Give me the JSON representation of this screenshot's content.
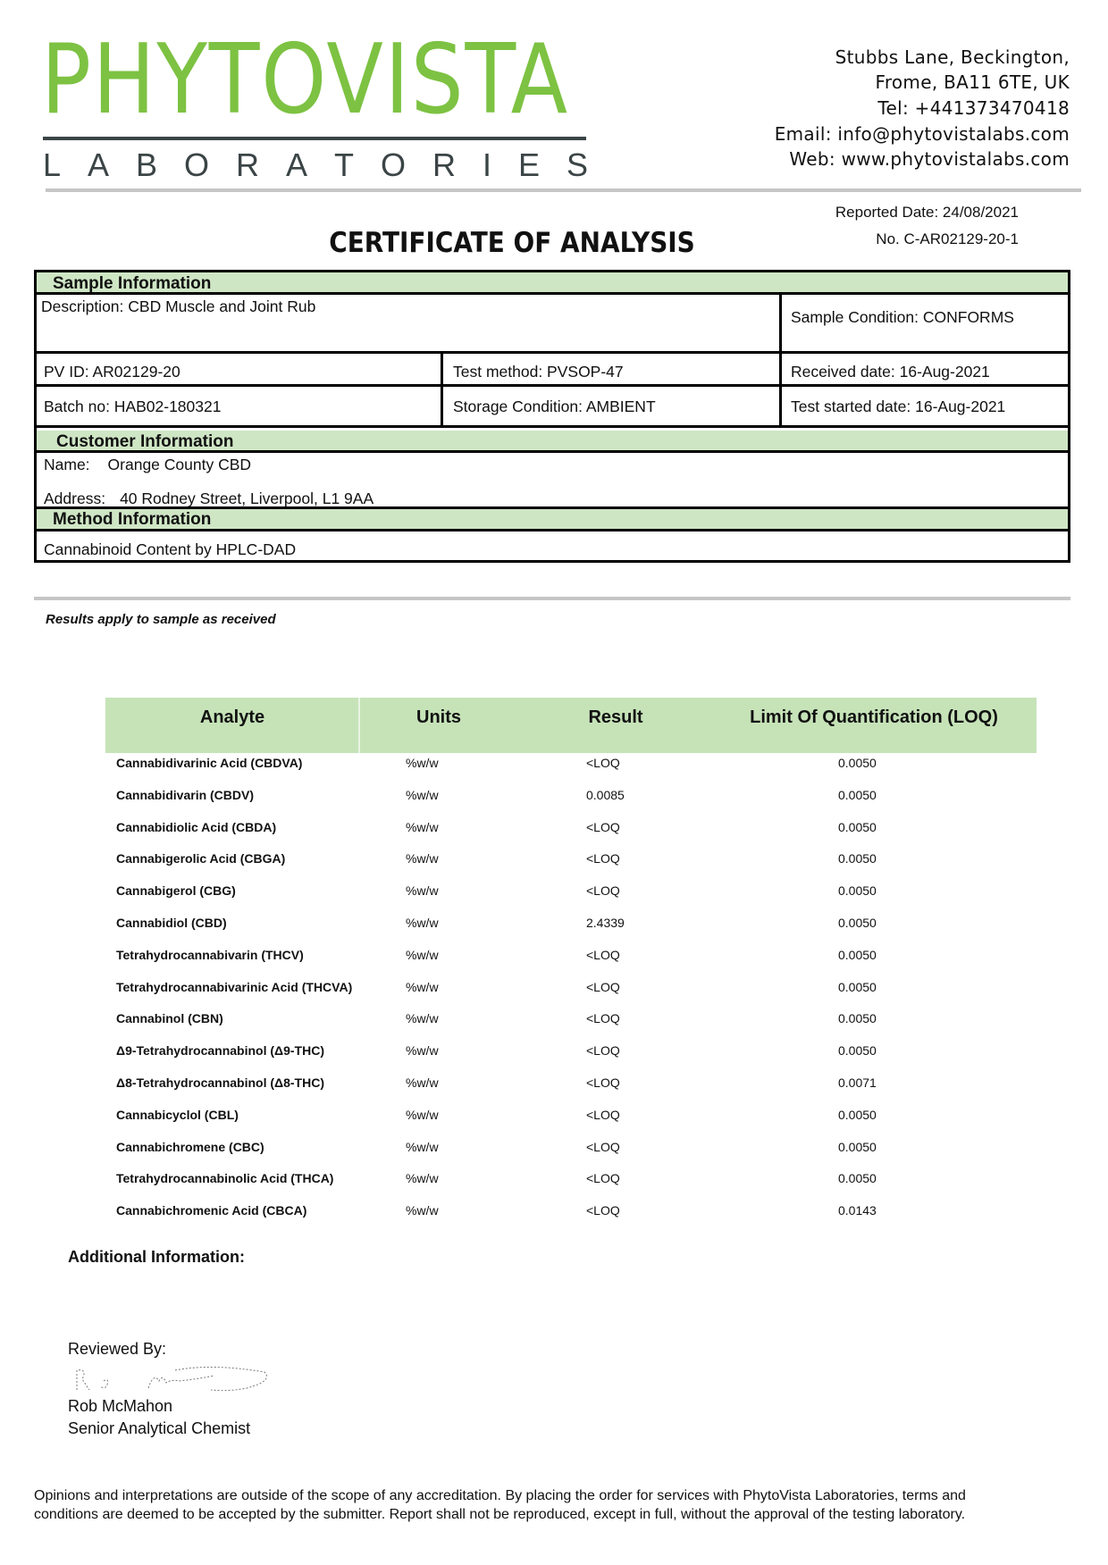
{
  "logo": {
    "name": "PHYTOVISTA",
    "subtitle": "LABORATORIES",
    "color": "#7dc242"
  },
  "address": {
    "line1": "Stubbs Lane, Beckington,",
    "line2": "Frome, BA11 6TE, UK",
    "tel": "Tel: +441373470418",
    "email": "Email: info@phytovistalabs.com",
    "web": "Web: www.phytovistalabs.com"
  },
  "report": {
    "reported_date": "Reported Date: 24/08/2021",
    "number": "No. C-AR02129-20-1",
    "title": "CERTIFICATE OF ANALYSIS"
  },
  "sample": {
    "header": "Sample Information",
    "description": "Description: CBD Muscle and Joint Rub",
    "condition": "Sample Condition: CONFORMS",
    "pv_id": "PV ID: AR02129-20",
    "test_method": "Test method: PVSOP-47",
    "received": "Received date: 16-Aug-2021",
    "batch": "Batch no: HAB02-180321",
    "storage": "Storage Condition: AMBIENT",
    "test_started": "Test started date: 16-Aug-2021"
  },
  "customer": {
    "header": "Customer Information",
    "name_label": "Name:",
    "name": "Orange County CBD",
    "address_label": "Address:",
    "address": "40 Rodney Street, Liverpool, L1 9AA"
  },
  "method": {
    "header": "Method Information",
    "text": "Cannabinoid Content by HPLC-DAD"
  },
  "results_note": "Results apply to sample as received",
  "results": {
    "columns": [
      "Analyte",
      "Units",
      "Result",
      "Limit Of Quantification (LOQ)"
    ],
    "rows": [
      {
        "analyte": "Cannabidivarinic Acid (CBDVA)",
        "units": "%w/w",
        "result": "<LOQ",
        "loq": "0.0050"
      },
      {
        "analyte": "Cannabidivarin (CBDV)",
        "units": "%w/w",
        "result": "0.0085",
        "loq": "0.0050"
      },
      {
        "analyte": "Cannabidiolic Acid (CBDA)",
        "units": "%w/w",
        "result": "<LOQ",
        "loq": "0.0050"
      },
      {
        "analyte": "Cannabigerolic Acid (CBGA)",
        "units": "%w/w",
        "result": "<LOQ",
        "loq": "0.0050"
      },
      {
        "analyte": "Cannabigerol (CBG)",
        "units": "%w/w",
        "result": "<LOQ",
        "loq": "0.0050"
      },
      {
        "analyte": "Cannabidiol (CBD)",
        "units": "%w/w",
        "result": "2.4339",
        "loq": "0.0050"
      },
      {
        "analyte": "Tetrahydrocannabivarin (THCV)",
        "units": "%w/w",
        "result": "<LOQ",
        "loq": "0.0050"
      },
      {
        "analyte": "Tetrahydrocannabivarinic Acid (THCVA)",
        "units": "%w/w",
        "result": "<LOQ",
        "loq": "0.0050"
      },
      {
        "analyte": "Cannabinol (CBN)",
        "units": "%w/w",
        "result": "<LOQ",
        "loq": "0.0050"
      },
      {
        "analyte": "Δ9-Tetrahydrocannabinol (Δ9-THC)",
        "units": "%w/w",
        "result": "<LOQ",
        "loq": "0.0050"
      },
      {
        "analyte": "Δ8-Tetrahydrocannabinol (Δ8-THC)",
        "units": "%w/w",
        "result": "<LOQ",
        "loq": "0.0071"
      },
      {
        "analyte": "Cannabicyclol (CBL)",
        "units": "%w/w",
        "result": "<LOQ",
        "loq": "0.0050"
      },
      {
        "analyte": "Cannabichromene (CBC)",
        "units": "%w/w",
        "result": "<LOQ",
        "loq": "0.0050"
      },
      {
        "analyte": "Tetrahydrocannabinolic Acid (THCA)",
        "units": "%w/w",
        "result": "<LOQ",
        "loq": "0.0050"
      },
      {
        "analyte": "Cannabichromenic Acid (CBCA)",
        "units": "%w/w",
        "result": "<LOQ",
        "loq": "0.0143"
      }
    ]
  },
  "additional_info": "Additional Information:",
  "review": {
    "label": "Reviewed By:",
    "signature": "R. J. McMahon",
    "name": "Rob McMahon",
    "role": "Senior Analytical Chemist"
  },
  "footer": "Opinions and interpretations are outside of the scope of any accreditation. By placing the order for services with PhytoVista Laboratories, terms and conditions are deemed to be accepted by the submitter. Report shall not be reproduced, except in full, without the approval of the testing laboratory."
}
